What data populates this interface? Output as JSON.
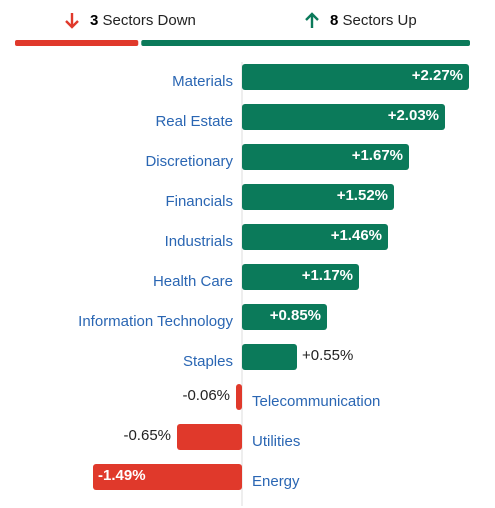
{
  "chart_data": {
    "type": "bar",
    "orientation": "horizontal",
    "down_count": 3,
    "down_label": "Sectors Down",
    "up_count": 8,
    "up_label": "Sectors Up",
    "categories": [
      "Materials",
      "Real Estate",
      "Discretionary",
      "Financials",
      "Industrials",
      "Health Care",
      "Information Technology",
      "Staples",
      "Telecommunication",
      "Utilities",
      "Energy"
    ],
    "values": [
      2.27,
      2.03,
      1.67,
      1.52,
      1.46,
      1.17,
      0.85,
      0.55,
      -0.06,
      -0.65,
      -1.49
    ],
    "value_labels": [
      "+2.27%",
      "+2.03%",
      "+1.67%",
      "+1.52%",
      "+1.46%",
      "+1.17%",
      "+0.85%",
      "+0.55%",
      "-0.06%",
      "-0.65%",
      "-1.49%"
    ],
    "up_color": "#0b7a5a",
    "down_color": "#e0392b",
    "xlim": [
      -1.5,
      2.3
    ]
  }
}
